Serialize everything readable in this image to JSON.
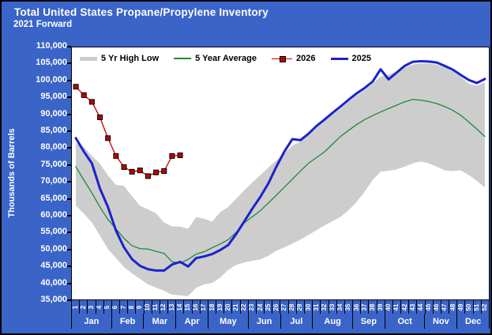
{
  "header": {
    "title": "Total United States Propane/Propylene Inventory",
    "subtitle": "2021 Forward"
  },
  "colors": {
    "background": "#3a64c8",
    "plot_background": "#ffffff",
    "band": "#cdcdcd",
    "average_line": "#1e8b38",
    "line_2026": "#c00000",
    "line_2025": "#1c22cc",
    "axis_text": "#ffffff",
    "legend_text": "#000000",
    "frame": "#000000"
  },
  "legend": {
    "position": "top-inside",
    "items": [
      {
        "label": "5 Yr High Low",
        "swatch": "band",
        "color": "#cdcdcd"
      },
      {
        "label": "5 Year Average",
        "swatch": "line",
        "color": "#1e8b38"
      },
      {
        "label": "2026",
        "swatch": "line-marker",
        "color": "#c00000"
      },
      {
        "label": "2025",
        "swatch": "line-thick",
        "color": "#1c22cc"
      }
    ]
  },
  "chart_data": {
    "type": "line",
    "title": "Total United States Propane/Propylene Inventory",
    "subtitle": "2021 Forward",
    "xlabel": "",
    "ylabel": "Thousands of Barrels",
    "ylim": [
      35000,
      110000
    ],
    "ytick_step": 5000,
    "ytick_labels": [
      "110,000",
      "105,000",
      "100,000",
      "95,000",
      "90,000",
      "85,000",
      "80,000",
      "75,000",
      "70,000",
      "65,000",
      "60,000",
      "55,000",
      "50,000",
      "45,000",
      "40,000",
      "35,000"
    ],
    "grid": false,
    "x_weeks": [
      1,
      2,
      3,
      4,
      5,
      6,
      7,
      8,
      9,
      10,
      11,
      12,
      13,
      14,
      15,
      16,
      17,
      18,
      19,
      20,
      21,
      22,
      23,
      24,
      25,
      26,
      27,
      28,
      29,
      30,
      31,
      32,
      33,
      34,
      35,
      36,
      37,
      38,
      39,
      40,
      41,
      42,
      43,
      44,
      45,
      46,
      47,
      48,
      49,
      50,
      51,
      52
    ],
    "months": [
      {
        "label": "Jan",
        "weeks": 5
      },
      {
        "label": "Feb",
        "weeks": 4
      },
      {
        "label": "Mar",
        "weeks": 4
      },
      {
        "label": "Apr",
        "weeks": 4
      },
      {
        "label": "May",
        "weeks": 5
      },
      {
        "label": "Jun",
        "weeks": 4
      },
      {
        "label": "Jul",
        "weeks": 4
      },
      {
        "label": "Aug",
        "weeks": 5
      },
      {
        "label": "Sep",
        "weeks": 4
      },
      {
        "label": "Oct",
        "weeks": 5
      },
      {
        "label": "Nov",
        "weeks": 4
      },
      {
        "label": "Dec",
        "weeks": 4
      }
    ],
    "series": [
      {
        "name": "5 Yr High Low",
        "type": "band",
        "color": "#cdcdcd",
        "high": [
          81500,
          80400,
          77700,
          75400,
          71900,
          69100,
          68800,
          65700,
          62900,
          61800,
          60600,
          57900,
          56700,
          56700,
          56000,
          59500,
          59000,
          58200,
          61000,
          62500,
          65000,
          67500,
          69800,
          72000,
          74200,
          76400,
          78500,
          80800,
          82000,
          83800,
          86000,
          88000,
          90000,
          91800,
          93800,
          95700,
          97300,
          99200,
          101300,
          101900,
          102800,
          104000,
          104900,
          105300,
          105200,
          104900,
          104200,
          102900,
          101300,
          99200,
          98600,
          99600
        ],
        "low": [
          62900,
          60500,
          57900,
          54000,
          50000,
          47300,
          44600,
          42800,
          41100,
          39500,
          38500,
          37600,
          36400,
          36200,
          36000,
          38500,
          39500,
          39900,
          41500,
          43800,
          45300,
          46000,
          46500,
          46900,
          48000,
          49500,
          50500,
          51600,
          52800,
          54200,
          55600,
          57000,
          58300,
          59600,
          61500,
          64000,
          67000,
          70500,
          73000,
          73300,
          73700,
          74500,
          75500,
          76100,
          75500,
          74500,
          73400,
          73200,
          73400,
          72000,
          70300,
          68300
        ]
      },
      {
        "name": "5 Year Average",
        "type": "line",
        "color": "#1e8b38",
        "stroke_width": 1.3,
        "values": [
          74500,
          70500,
          66700,
          62500,
          58800,
          56000,
          53200,
          51000,
          50100,
          50000,
          49300,
          48700,
          46200,
          45800,
          46900,
          48500,
          49200,
          50400,
          51500,
          52800,
          55000,
          57800,
          59600,
          61400,
          63700,
          66000,
          68400,
          70800,
          73200,
          75500,
          77200,
          78900,
          81200,
          83500,
          85300,
          87000,
          88500,
          89700,
          90800,
          91800,
          92800,
          93800,
          94500,
          94300,
          93900,
          93300,
          92400,
          91300,
          89800,
          87800,
          85700,
          83500
        ]
      },
      {
        "name": "2025",
        "type": "line",
        "color": "#1c22cc",
        "stroke_width": 3,
        "values": [
          83000,
          79000,
          75500,
          68000,
          62500,
          55500,
          50500,
          47000,
          45000,
          44000,
          43600,
          43600,
          45400,
          46200,
          44800,
          47300,
          47800,
          48500,
          49700,
          51200,
          54500,
          58200,
          62000,
          65500,
          69500,
          74500,
          79000,
          82700,
          82400,
          84300,
          86600,
          88500,
          90500,
          92400,
          94400,
          96300,
          97900,
          99800,
          103500,
          100500,
          102500,
          104500,
          105700,
          105900,
          105800,
          105500,
          104500,
          103400,
          101800,
          100300,
          99400,
          100600
        ]
      },
      {
        "name": "2026",
        "type": "line-marker",
        "color": "#c00000",
        "marker": "square",
        "stroke_width": 1.3,
        "values": [
          98300,
          95800,
          93800,
          89200,
          83000,
          77700,
          74400,
          73000,
          73400,
          71700,
          72800,
          73200,
          77700,
          77900
        ]
      }
    ]
  }
}
